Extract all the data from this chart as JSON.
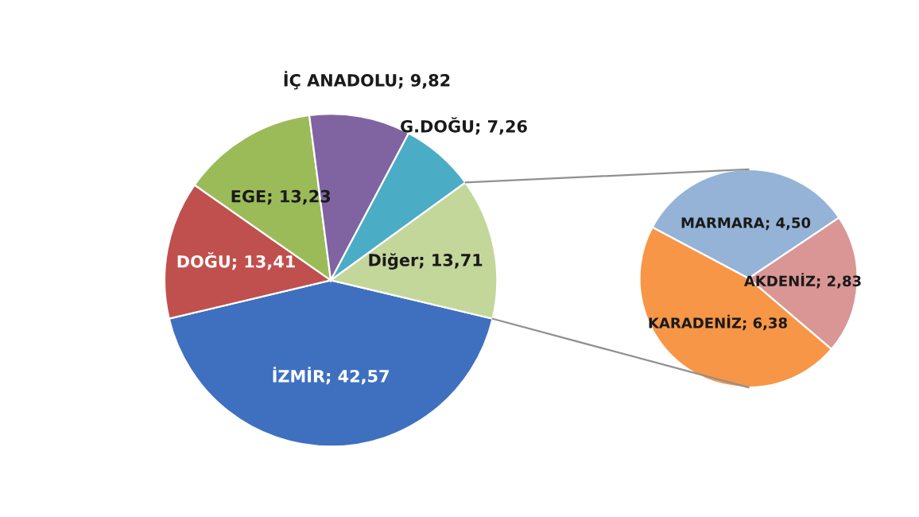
{
  "chart_data": [
    {
      "type": "pie",
      "categories": [
        "İZMİR",
        "DOĞU",
        "EGE",
        "İÇ ANADOLU",
        "G.DOĞU",
        "Diğer"
      ],
      "values": [
        42.57,
        13.41,
        13.23,
        9.82,
        7.26,
        13.71
      ],
      "colors": [
        "#3f70c0",
        "#c0504d",
        "#9bbb59",
        "#8064a2",
        "#4bacc6",
        "#c4d79b"
      ],
      "value_labels": [
        "42,57",
        "13,41",
        "13,23",
        "9,82",
        "7,26",
        "13,71"
      ]
    },
    {
      "type": "pie",
      "categories": [
        "MARMARA",
        "AKDENİZ",
        "KARADENİZ"
      ],
      "values": [
        4.5,
        2.83,
        6.38
      ],
      "colors": [
        "#95b3d7",
        "#d99694",
        "#f79646"
      ],
      "value_labels": [
        "4,50",
        "2,83",
        "6,38"
      ]
    }
  ]
}
